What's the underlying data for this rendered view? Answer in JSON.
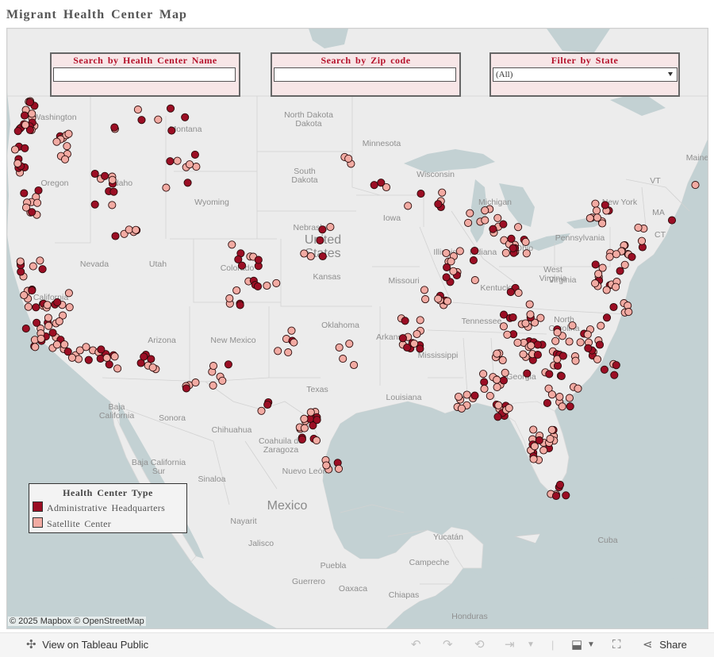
{
  "page": {
    "title": "Migrant Health Center Map"
  },
  "filters": {
    "name_search": {
      "label": "Search by Health Center Name",
      "value": ""
    },
    "zip_search": {
      "label": "Search by Zip code",
      "value": ""
    },
    "state_filter": {
      "label": "Filter by State",
      "value": "(All)"
    }
  },
  "legend": {
    "title": "Health Center Type",
    "items": [
      {
        "label": "Administrative Headquarters",
        "color": "#9b0e24"
      },
      {
        "label": "Satellite Center",
        "color": "#f2aba3"
      }
    ]
  },
  "map": {
    "land_color": "#ececec",
    "water_color": "#c3d1d3",
    "labels": [
      {
        "text": "Montana"
      },
      {
        "text": "North Dakota",
        "text2": "Dakota"
      },
      {
        "text": "Minnesota"
      },
      {
        "text": "Idaho"
      },
      {
        "text": "Wyoming"
      },
      {
        "text": "South",
        "text2": "Dakota"
      },
      {
        "text": "Wisconsin"
      },
      {
        "text": "Michigan"
      },
      {
        "text": "Nevada"
      },
      {
        "text": "Utah"
      },
      {
        "text": "Nebraska"
      },
      {
        "text": "Iowa"
      },
      {
        "text": "Illinois"
      },
      {
        "text": "Indiana"
      },
      {
        "text": "Ohio"
      },
      {
        "text": "Pennsylvania"
      },
      {
        "text": "New York"
      },
      {
        "text": "VT"
      },
      {
        "text": "MA"
      },
      {
        "text": "CT"
      },
      {
        "text": "Maine"
      },
      {
        "text": "Colorado"
      },
      {
        "text": "Kansas"
      },
      {
        "text": "Missouri"
      },
      {
        "text": "Kentucky"
      },
      {
        "text": "West",
        "text2": "Virginia"
      },
      {
        "text": "North",
        "text2": "Carolina"
      },
      {
        "text": "Tennessee"
      },
      {
        "text": "Arkansas"
      },
      {
        "text": "Oklahoma"
      },
      {
        "text": "New Mexico"
      },
      {
        "text": "Arizona"
      },
      {
        "text": "Mississippi"
      },
      {
        "text": "Texas"
      },
      {
        "text": "Louisiana"
      },
      {
        "text": "Georgia"
      },
      {
        "text": "Baja",
        "text2": "California"
      },
      {
        "text": "Sonora"
      },
      {
        "text": "Chihuahua"
      },
      {
        "text": "Coahuila de",
        "text2": "Zaragoza"
      },
      {
        "text": "Nuevo León"
      },
      {
        "text": "Baja California",
        "text2": "Sur"
      },
      {
        "text": "Sinaloa"
      },
      {
        "text": "Mexico"
      },
      {
        "text": "Nayarit"
      },
      {
        "text": "Jalisco"
      },
      {
        "text": "Puebla"
      },
      {
        "text": "Guerrero"
      },
      {
        "text": "Oaxaca"
      },
      {
        "text": "Chiapas"
      },
      {
        "text": "Campeche"
      },
      {
        "text": "Yucatán"
      },
      {
        "text": "Cuba"
      },
      {
        "text": "Honduras"
      },
      {
        "text": "United",
        "text2": "States"
      },
      {
        "text": "California"
      },
      {
        "text": "Washington"
      },
      {
        "text": "Oregon"
      },
      {
        "text": "Virginia"
      }
    ]
  },
  "attribution": "© 2025 Mapbox © OpenStreetMap",
  "toolbar": {
    "view_label": "View on Tableau Public",
    "share_label": "Share"
  }
}
